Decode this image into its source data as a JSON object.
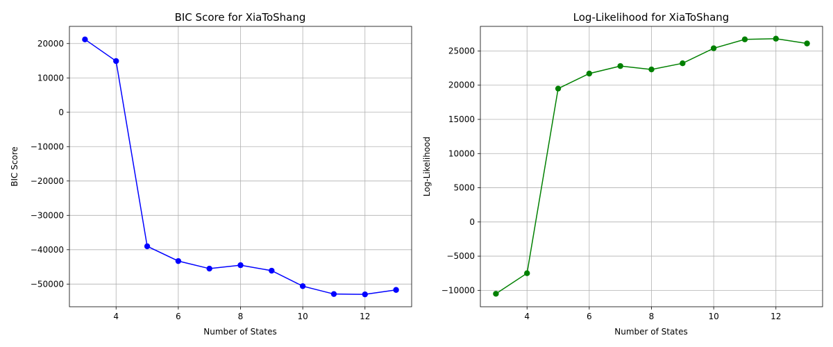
{
  "chart_data": [
    {
      "type": "line",
      "title": "BIC Score for XiaToShang",
      "xlabel": "Number of States",
      "ylabel": "BIC Score",
      "xlim": [
        2.5,
        13.5
      ],
      "ylim": [
        -56600,
        25000
      ],
      "xticks": [
        4,
        6,
        8,
        10,
        12
      ],
      "yticks": [
        20000,
        10000,
        0,
        -10000,
        -20000,
        -30000,
        -40000,
        -50000
      ],
      "ytick_labels": [
        "20000",
        "10000",
        "0",
        "−10000",
        "−20000",
        "−30000",
        "−40000",
        "−50000"
      ],
      "grid": true,
      "color": "#0000ff",
      "marker": "circle",
      "x": [
        3,
        4,
        5,
        6,
        7,
        8,
        9,
        10,
        11,
        12,
        13
      ],
      "y": [
        21200,
        14900,
        -39000,
        -43300,
        -45500,
        -44500,
        -46100,
        -50600,
        -52900,
        -53000,
        -51700
      ]
    },
    {
      "type": "line",
      "title": "Log-Likelihood for XiaToShang",
      "xlabel": "Number of States",
      "ylabel": "Log-Likelihood",
      "xlim": [
        2.5,
        13.5
      ],
      "ylim": [
        -12400,
        28600
      ],
      "xticks": [
        4,
        6,
        8,
        10,
        12
      ],
      "yticks": [
        25000,
        20000,
        15000,
        10000,
        5000,
        0,
        -5000,
        -10000
      ],
      "ytick_labels": [
        "25000",
        "20000",
        "15000",
        "10000",
        "5000",
        "0",
        "−5000",
        "−10000"
      ],
      "grid": true,
      "color": "#008000",
      "marker": "circle",
      "x": [
        3,
        4,
        5,
        6,
        7,
        8,
        9,
        10,
        11,
        12,
        13
      ],
      "y": [
        -10500,
        -7500,
        19500,
        21700,
        22800,
        22300,
        23200,
        25400,
        26700,
        26800,
        26100
      ]
    }
  ]
}
